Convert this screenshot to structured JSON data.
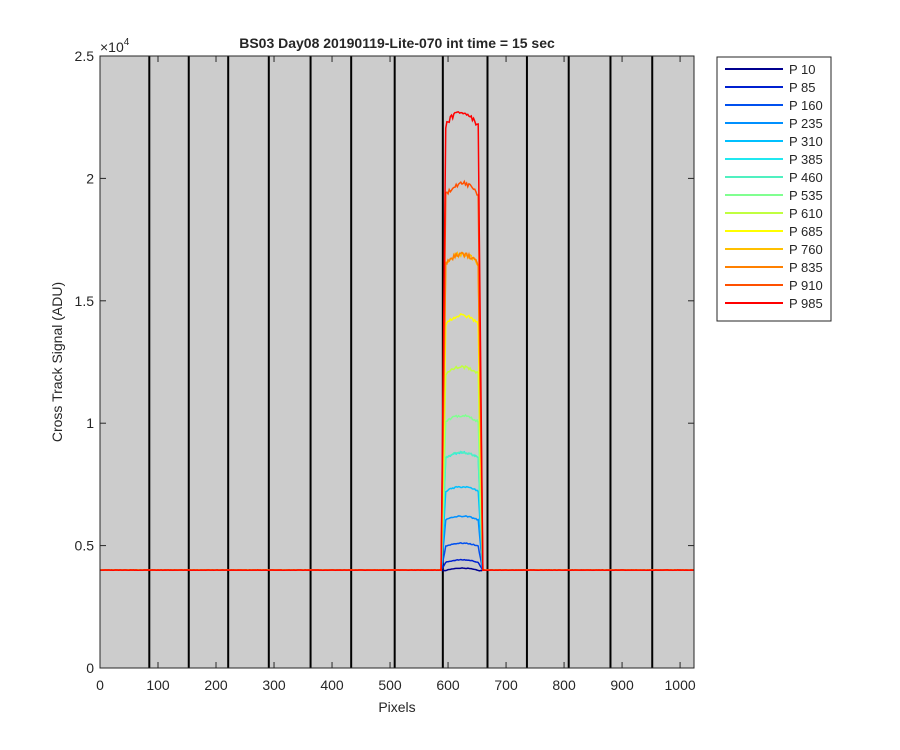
{
  "chart_data": {
    "type": "line",
    "title": "BS03 Day08 20190119-Lite-070 int time = 15 sec",
    "xlabel": "Pixels",
    "ylabel": "Cross Track Signal (ADU)",
    "xlim": [
      0,
      1024
    ],
    "ylim": [
      0,
      25000
    ],
    "x_ticks": [
      0,
      100,
      200,
      300,
      400,
      500,
      600,
      700,
      800,
      900,
      1000
    ],
    "x_tick_labels": [
      "0",
      "100",
      "200",
      "300",
      "400",
      "500",
      "600",
      "700",
      "800",
      "900",
      "1000"
    ],
    "y_ticks": [
      0,
      5000,
      10000,
      15000,
      20000,
      25000
    ],
    "y_tick_labels": [
      "0",
      "0.5",
      "1",
      "1.5",
      "2",
      "2.5"
    ],
    "y_exponent_label": "×10",
    "y_exponent_power": "4",
    "plot_background": "#cccccc",
    "vertical_separators_x": [
      85,
      153,
      221,
      291,
      363,
      433,
      508,
      591,
      668,
      736,
      808,
      880,
      952
    ],
    "separator_color": "#000000",
    "grid": false,
    "legend_position": "outside-right-top",
    "baseline": 4000,
    "feature_start": 588,
    "feature_end": 660,
    "series": [
      {
        "name": "P 10",
        "color": "#00008f",
        "baseline": 4000,
        "plateau": 4080
      },
      {
        "name": "P 85",
        "color": "#0020d0",
        "baseline": 4000,
        "plateau": 4420
      },
      {
        "name": "P 160",
        "color": "#0050ef",
        "baseline": 4000,
        "plateau": 5100
      },
      {
        "name": "P 235",
        "color": "#0090ff",
        "baseline": 4000,
        "plateau": 6200
      },
      {
        "name": "P 310",
        "color": "#00c0ff",
        "baseline": 4000,
        "plateau": 7400
      },
      {
        "name": "P 385",
        "color": "#20e8f0",
        "baseline": 4000,
        "plateau": 8800
      },
      {
        "name": "P 460",
        "color": "#50f0c0",
        "baseline": 4000,
        "plateau": 8800
      },
      {
        "name": "P 535",
        "color": "#80ff90",
        "baseline": 4000,
        "plateau": 10300
      },
      {
        "name": "P 610",
        "color": "#c0ff40",
        "baseline": 4000,
        "plateau": 12300
      },
      {
        "name": "P 685",
        "color": "#ffff00",
        "baseline": 4000,
        "plateau": 14400
      },
      {
        "name": "P 760",
        "color": "#ffc000",
        "baseline": 4000,
        "plateau": 16900
      },
      {
        "name": "P 835",
        "color": "#ff8000",
        "baseline": 4000,
        "plateau": 16900
      },
      {
        "name": "P 910",
        "color": "#ff5000",
        "baseline": 4000,
        "plateau": 19800
      },
      {
        "name": "P 985",
        "color": "#ff0000",
        "baseline": 4000,
        "plateau": 22700
      }
    ]
  }
}
